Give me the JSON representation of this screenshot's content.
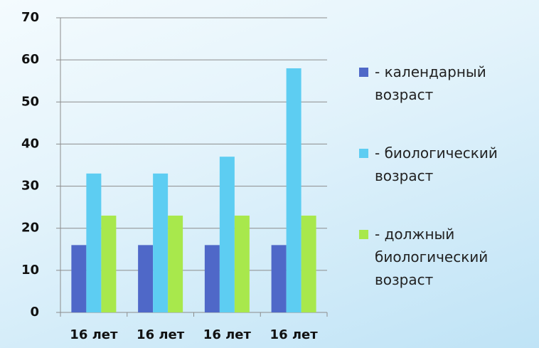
{
  "chart_data": {
    "type": "bar",
    "categories": [
      "16 лет",
      "16 лет",
      "16 лет",
      "16 лет"
    ],
    "series": [
      {
        "name": "- календарный возраст",
        "color": "#4f68c8",
        "values": [
          16,
          16,
          16,
          16
        ]
      },
      {
        "name": "- биологический возраст",
        "color": "#5dcdf2",
        "values": [
          33,
          33,
          37,
          58
        ]
      },
      {
        "name": "- должный биологический возраст",
        "color": "#a8e84c",
        "values": [
          23,
          23,
          23,
          23
        ]
      }
    ],
    "ylim": [
      0,
      70
    ],
    "yticks": [
      0,
      10,
      20,
      30,
      40,
      50,
      60,
      70
    ],
    "grid": true,
    "legend": "right"
  }
}
